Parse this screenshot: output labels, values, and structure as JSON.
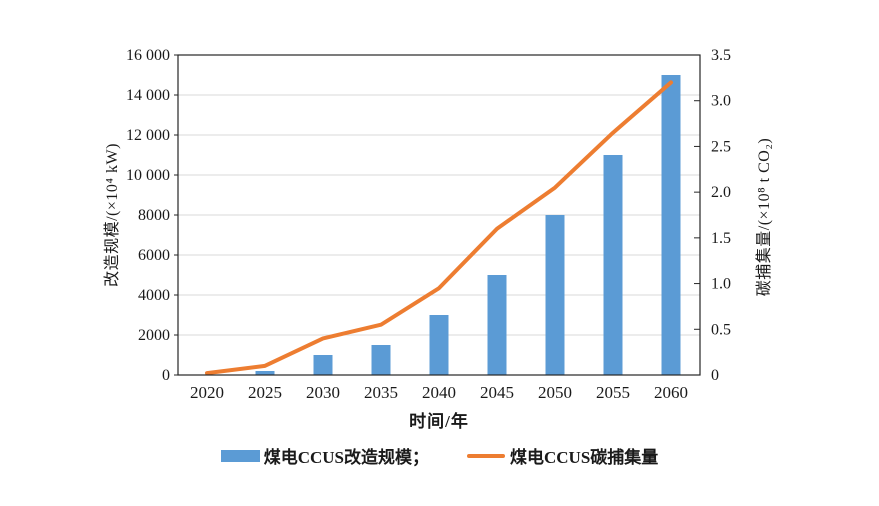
{
  "chart_data": {
    "type": "bar+line combo, dual y-axes",
    "categories": [
      "2020",
      "2025",
      "2030",
      "2035",
      "2040",
      "2045",
      "2050",
      "2055",
      "2060"
    ],
    "xlabel": "时间/年",
    "series": [
      {
        "name": "煤电CCUS改造规模",
        "chart_type": "bar",
        "axis": "left",
        "values": [
          0,
          200,
          1000,
          1500,
          3000,
          5000,
          8000,
          11000,
          15000
        ]
      },
      {
        "name": "煤电CCUS碳捕集量",
        "chart_type": "line",
        "axis": "right",
        "values": [
          0.02,
          0.1,
          0.4,
          0.55,
          0.95,
          1.6,
          2.05,
          2.65,
          3.2
        ]
      }
    ],
    "left_axis": {
      "label": "改造规模/(×10⁴ kW)",
      "min": 0,
      "max": 16000,
      "tick_labels": [
        "0",
        "2000",
        "4000",
        "6000",
        "8000",
        "10 000",
        "12 000",
        "14 000",
        "16 000"
      ]
    },
    "right_axis": {
      "label": "碳捕集量/(×10⁸ t CO₂)",
      "min": 0,
      "max": 3.5,
      "tick_labels": [
        "0",
        "0.5",
        "1.0",
        "1.5",
        "2.0",
        "2.5",
        "3.0",
        "3.5"
      ]
    },
    "grid": true,
    "legend": {
      "position": "bottom",
      "items": [
        {
          "label": "煤电CCUS改造规模；",
          "swatch": "bar"
        },
        {
          "label": "煤电CCUS碳捕集量",
          "swatch": "line"
        }
      ]
    }
  },
  "colors": {
    "bar": "#5B9BD5",
    "line": "#ED7D31",
    "grid": "#D9D9D9",
    "axis_border": "#262626",
    "text": "#1A1A1A",
    "background": "#FFFFFF"
  }
}
